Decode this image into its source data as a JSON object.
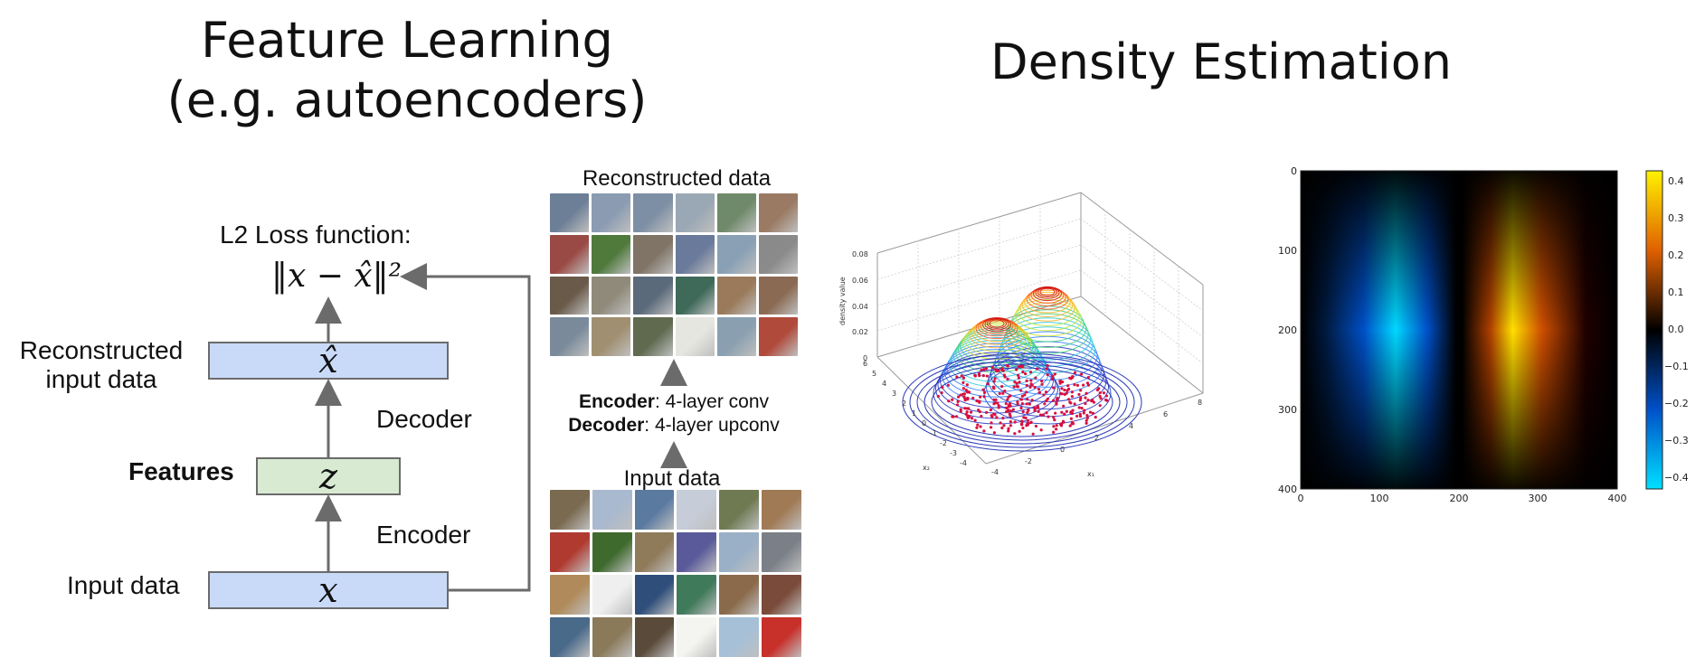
{
  "titles": {
    "feature_learning_line1": "Feature Learning",
    "feature_learning_line2": "(e.g. autoencoders)",
    "density_estimation": "Density Estimation"
  },
  "autoencoder": {
    "loss_title": "L2 Loss function:",
    "loss_formula": "‖x − x̂‖²",
    "reconstructed_label_line1": "Reconstructed",
    "reconstructed_label_line2": "input data",
    "x_hat": "x̂",
    "decoder": "Decoder",
    "features": "Features",
    "z": "z",
    "encoder": "Encoder",
    "input_label": "Input data",
    "x": "x"
  },
  "image_panel": {
    "reconstructed_title": "Reconstructed data",
    "encoder_bold": "Encoder",
    "encoder_rest": ": 4-layer conv",
    "decoder_bold": "Decoder",
    "decoder_rest": ": 4-layer upconv",
    "input_title": "Input data",
    "reconstructed_colors": [
      "#6d7f96",
      "#8a9bb2",
      "#7d8fa4",
      "#9aa7b4",
      "#6f8a6a",
      "#9a7a62",
      "#9a4a44",
      "#4f7a3c",
      "#7f7466",
      "#6a7a9a",
      "#8aa0b4",
      "#8a8a8a",
      "#6a5a4a",
      "#8f8a7a",
      "#5a6a7a",
      "#3f6a5a",
      "#9a7a5a",
      "#8a6a52",
      "#7a8a9a",
      "#a08f70",
      "#5f6a4f",
      "#e6e6e0",
      "#8aa0b0",
      "#b04a3a"
    ],
    "input_colors": [
      "#7a6a50",
      "#a9b9cf",
      "#5a7aa0",
      "#c6ccd8",
      "#6f7a52",
      "#a07a55",
      "#b03a30",
      "#3f6a2e",
      "#8f7a5a",
      "#5a5a9a",
      "#9ab0c6",
      "#7a7f88",
      "#b08a5a",
      "#efefef",
      "#2f4f7a",
      "#3f7a5a",
      "#8a6a4a",
      "#7a4a3a",
      "#4a6a8a",
      "#8a7a5a",
      "#5a4a3a",
      "#f4f4f0",
      "#a6c0d8",
      "#c8302a"
    ]
  },
  "density_3d": {
    "z_axis_label": "density value",
    "z_ticks": [
      "0.08",
      "0.06",
      "0.04",
      "0.02",
      "0"
    ],
    "x2_axis_label": "x₂",
    "x1_axis_label": "x₁",
    "x2_ticks": [
      "6",
      "5",
      "4",
      "3",
      "2",
      "1",
      "0",
      "-1",
      "-2",
      "-3",
      "-4"
    ],
    "x1_ticks": [
      "-4",
      "-2",
      "0",
      "2",
      "4",
      "6",
      "8"
    ]
  },
  "heatmap": {
    "y_ticks": [
      "0",
      "100",
      "200",
      "300",
      "400"
    ],
    "x_ticks": [
      "0",
      "100",
      "200",
      "300",
      "400"
    ],
    "colorbar_ticks": [
      "0.4",
      "0.3",
      "0.2",
      "0.1",
      "0.0",
      "−0.1",
      "−0.2",
      "−0.3",
      "−0.4"
    ],
    "peak_value": 0.4,
    "min_value": -0.4
  }
}
